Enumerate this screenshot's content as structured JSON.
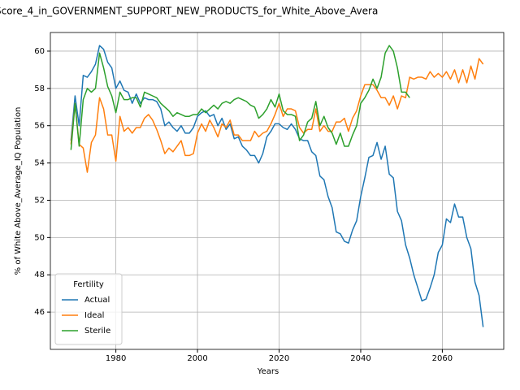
{
  "chart_data": {
    "type": "line",
    "title": "Score_4_in_GOVERNMENT_SUPPORT_NEW_PRODUCTS_for_White_Above_Avera",
    "xlabel": "Years",
    "ylabel": "% of White Above_Average_IQ Population",
    "legend_title": "Fertility",
    "legend": "lower left",
    "grid": true,
    "xlim": [
      1963.95,
      2075.05
    ],
    "ylim": [
      44.0,
      61.0
    ],
    "xticks": [
      1980,
      2000,
      2020,
      2040,
      2060
    ],
    "yticks": [
      46,
      48,
      50,
      52,
      54,
      56,
      58,
      60
    ],
    "x": [
      1969,
      1970,
      1971,
      1972,
      1973,
      1974,
      1975,
      1976,
      1977,
      1978,
      1979,
      1980,
      1981,
      1982,
      1983,
      1984,
      1985,
      1986,
      1987,
      1988,
      1989,
      1990,
      1991,
      1992,
      1993,
      1994,
      1995,
      1996,
      1997,
      1998,
      1999,
      2000,
      2001,
      2002,
      2003,
      2004,
      2005,
      2006,
      2007,
      2008,
      2009,
      2010,
      2011,
      2012,
      2013,
      2014,
      2015,
      2016,
      2017,
      2018,
      2019,
      2020,
      2021,
      2022,
      2023,
      2024,
      2025,
      2026,
      2027,
      2028,
      2029,
      2030,
      2031,
      2032,
      2033,
      2034,
      2035,
      2036,
      2037,
      2038,
      2039,
      2040,
      2041,
      2042,
      2043,
      2044,
      2045,
      2046,
      2047,
      2048,
      2049,
      2050,
      2051,
      2052,
      2053,
      2054,
      2055,
      2056,
      2057,
      2058,
      2059,
      2060,
      2061,
      2062,
      2063,
      2064,
      2065,
      2066,
      2067,
      2068,
      2069,
      2070
    ],
    "series": [
      {
        "name": "Actual",
        "color": "#1f77b4",
        "values": [
          55.2,
          57.6,
          56.0,
          58.7,
          58.6,
          58.9,
          59.3,
          60.3,
          60.1,
          59.4,
          59.1,
          58.0,
          58.4,
          57.9,
          57.8,
          57.2,
          57.7,
          57.2,
          57.5,
          57.4,
          57.4,
          57.3,
          56.9,
          56.0,
          56.2,
          55.9,
          55.7,
          56.0,
          55.6,
          55.6,
          55.9,
          56.5,
          56.7,
          56.8,
          56.5,
          56.6,
          56.0,
          56.4,
          55.8,
          56.1,
          55.3,
          55.4,
          54.9,
          54.7,
          54.4,
          54.4,
          54.0,
          54.5,
          55.4,
          55.7,
          56.1,
          56.1,
          55.9,
          55.8,
          56.1,
          55.8,
          55.3,
          55.2,
          55.2,
          54.6,
          54.4,
          53.3,
          53.1,
          52.2,
          51.6,
          50.3,
          50.2,
          49.8,
          49.7,
          50.4,
          50.9,
          52.2,
          53.2,
          54.3,
          54.4,
          55.1,
          54.2,
          54.9,
          53.4,
          53.2,
          51.4,
          50.9,
          49.6,
          48.9,
          48.0,
          47.3,
          46.6,
          46.7,
          47.3,
          48.0,
          49.2,
          49.6,
          51.0,
          50.8,
          51.8,
          51.1,
          51.1,
          50.0,
          49.4,
          47.6,
          46.9,
          45.2
        ]
      },
      {
        "name": "Ideal",
        "color": "#ff7f0e",
        "values": [
          55.0,
          57.2,
          55.0,
          54.8,
          53.5,
          55.1,
          55.5,
          57.5,
          56.9,
          55.5,
          55.5,
          54.1,
          56.5,
          55.7,
          55.9,
          55.6,
          55.9,
          55.9,
          56.4,
          56.6,
          56.3,
          55.8,
          55.2,
          54.5,
          54.8,
          54.6,
          54.9,
          55.2,
          54.4,
          54.4,
          54.5,
          55.6,
          56.1,
          55.7,
          56.3,
          55.9,
          55.4,
          56.1,
          55.9,
          56.3,
          55.5,
          55.5,
          55.2,
          55.2,
          55.2,
          55.7,
          55.4,
          55.6,
          55.7,
          56.1,
          56.6,
          57.2,
          56.5,
          56.9,
          56.9,
          56.8,
          55.9,
          55.6,
          55.8,
          55.8,
          56.9,
          55.7,
          56.0,
          55.7,
          55.7,
          56.2,
          56.2,
          56.4,
          55.7,
          56.4,
          56.8,
          57.6,
          58.2,
          58.2,
          58.2,
          57.9,
          57.5,
          57.5,
          57.1,
          57.6,
          56.9,
          57.6,
          57.5,
          58.6,
          58.5,
          58.6,
          58.6,
          58.5,
          58.9,
          58.6,
          58.8,
          58.6,
          58.9,
          58.5,
          59.0,
          58.3,
          59.0,
          58.3,
          59.2,
          58.5,
          59.6,
          59.3
        ]
      },
      {
        "name": "Sterile",
        "color": "#2ca02c",
        "values": [
          54.7,
          57.2,
          54.9,
          57.4,
          58.0,
          57.8,
          58.0,
          59.9,
          59.1,
          58.1,
          57.6,
          56.7,
          57.8,
          57.4,
          57.4,
          57.5,
          57.5,
          57.0,
          57.8,
          57.7,
          57.6,
          57.5,
          57.2,
          57.0,
          56.8,
          56.5,
          56.7,
          56.6,
          56.5,
          56.5,
          56.6,
          56.6,
          56.9,
          56.7,
          56.9,
          57.1,
          56.9,
          57.2,
          57.3,
          57.2,
          57.4,
          57.5,
          57.4,
          57.3,
          57.1,
          57.0,
          56.4,
          56.6,
          56.9,
          57.4,
          57.0,
          57.7,
          56.8,
          56.6,
          56.6,
          56.5,
          55.2,
          55.5,
          56.2,
          56.4,
          57.3,
          56.0,
          56.5,
          55.9,
          55.6,
          55.0,
          55.6,
          54.9,
          54.9,
          55.5,
          56.0,
          57.2,
          57.5,
          57.9,
          58.5,
          58.0,
          58.6,
          59.9,
          60.3,
          60.0,
          59.1,
          57.8,
          57.8,
          57.5,
          null,
          null,
          null,
          null,
          null,
          null,
          null,
          null,
          null,
          null,
          null,
          null,
          null,
          null,
          null,
          null,
          null,
          null
        ]
      }
    ]
  }
}
